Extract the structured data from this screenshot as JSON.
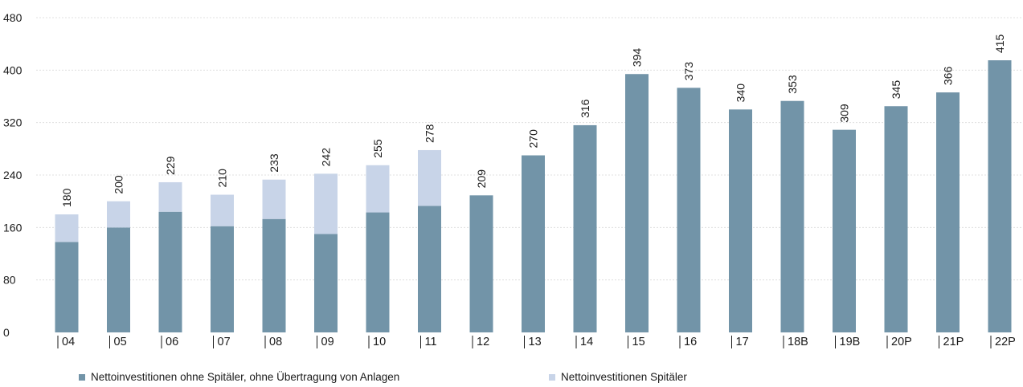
{
  "chart_data": {
    "type": "bar",
    "stacked": true,
    "categories": [
      "04",
      "05",
      "06",
      "07",
      "08",
      "09",
      "10",
      "11",
      "12",
      "13",
      "14",
      "15",
      "16",
      "17",
      "18B",
      "19B",
      "20P",
      "21P",
      "22P"
    ],
    "series": [
      {
        "name": "Nettoinvestitionen ohne Spitäler, ohne  Übertragung von Anlagen",
        "color": "#7294a8",
        "values": [
          138,
          160,
          184,
          162,
          173,
          150,
          183,
          193,
          209,
          270,
          316,
          394,
          373,
          340,
          353,
          309,
          345,
          366,
          415
        ]
      },
      {
        "name": "Nettoinvestitionen Spitäler",
        "color": "#c8d4e8",
        "values": [
          42,
          40,
          45,
          48,
          60,
          92,
          72,
          85,
          0,
          0,
          0,
          0,
          0,
          0,
          0,
          0,
          0,
          0,
          0
        ]
      }
    ],
    "totals": [
      "180",
      "200",
      "229",
      "210",
      "233",
      "242",
      "255",
      "278",
      "209",
      "270",
      "316",
      "394",
      "373",
      "340",
      "353",
      "309",
      "345",
      "366",
      "415"
    ],
    "yticks": [
      "0",
      "80",
      "160",
      "240",
      "320",
      "400",
      "480"
    ],
    "ylim": [
      0,
      480
    ],
    "grid": true,
    "legend_position": "bottom"
  }
}
